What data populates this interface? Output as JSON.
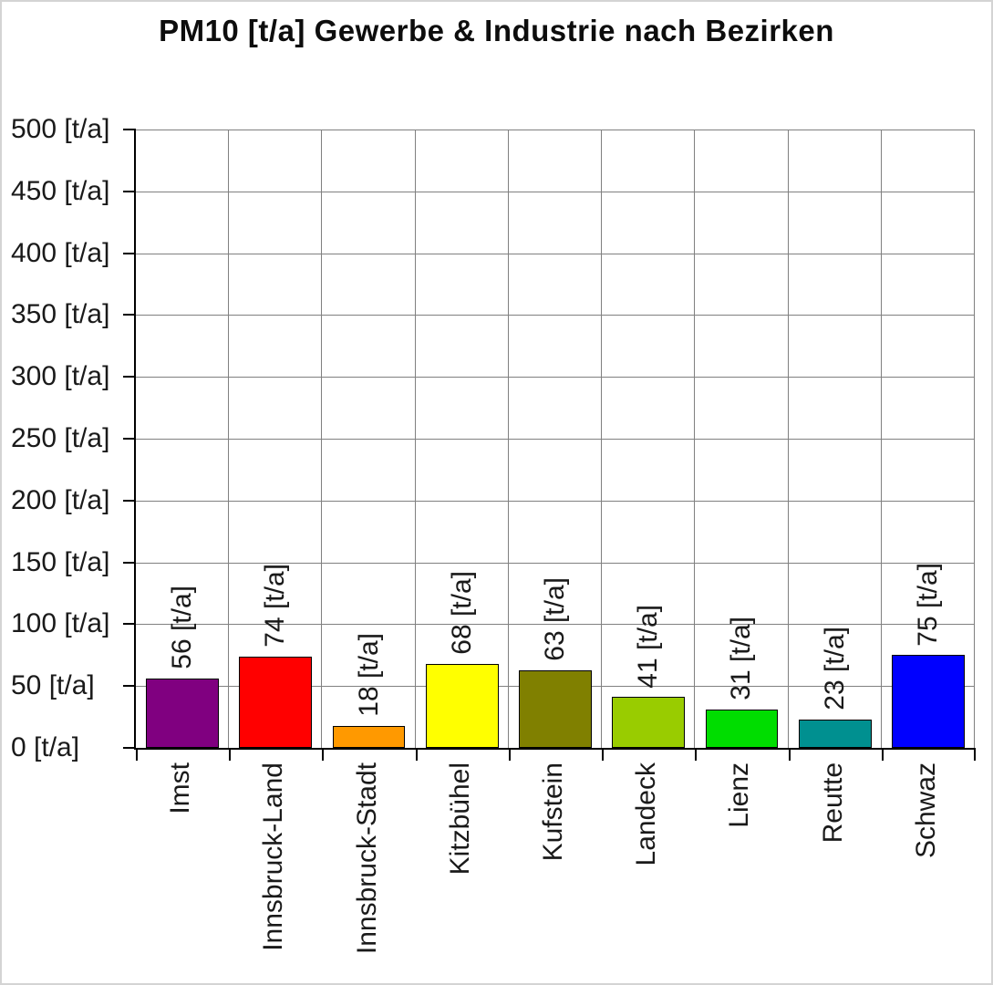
{
  "chart_data": {
    "type": "bar",
    "title": "PM10 [t/a] Gewerbe & Industrie nach Bezirken",
    "xlabel": "",
    "ylabel": "",
    "unit": "[t/a]",
    "categories": [
      "Imst",
      "Innsbruck-Land",
      "Innsbruck-Stadt",
      "Kitzbühel",
      "Kufstein",
      "Landeck",
      "Lienz",
      "Reutte",
      "Schwaz"
    ],
    "values": [
      56,
      74,
      18,
      68,
      63,
      41,
      31,
      23,
      75
    ],
    "bar_labels": [
      "56 [t/a]",
      "74 [t/a]",
      "18 [t/a]",
      "68 [t/a]",
      "63 [t/a]",
      "41 [t/a]",
      "31 [t/a]",
      "23 [t/a]",
      "75 [t/a]"
    ],
    "bar_colors": [
      "#800080",
      "#FF0000",
      "#FF9900",
      "#FFFF00",
      "#808000",
      "#99CC00",
      "#00DD00",
      "#009090",
      "#0000FF"
    ],
    "ylim": [
      0,
      500
    ],
    "ytick_step": 50,
    "ytick_labels": [
      "0 [t/a]",
      "50 [t/a]",
      "100 [t/a]",
      "150 [t/a]",
      "200 [t/a]",
      "250 [t/a]",
      "300 [t/a]",
      "350 [t/a]",
      "400 [t/a]",
      "450 [t/a]",
      "500 [t/a]"
    ],
    "grid": "both",
    "legend": "none"
  },
  "colors": {
    "axis": "#000000",
    "gridline": "#808080",
    "text": "#1a1a1a",
    "background": "#ffffff"
  }
}
